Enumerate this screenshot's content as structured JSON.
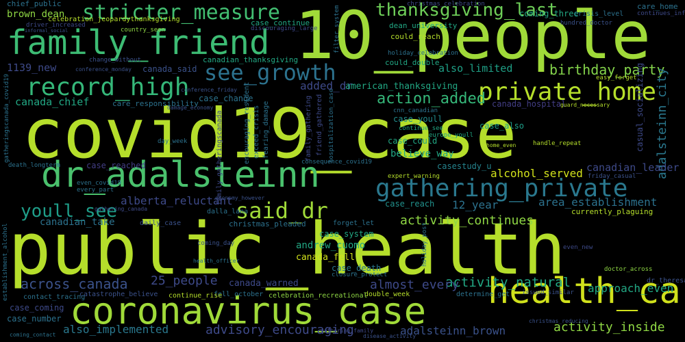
{
  "words": [
    {
      "text": "covid19_case",
      "color": "#b5de2b"
    },
    {
      "text": "public_health",
      "color": "#b5de2b"
    },
    {
      "text": "10_people",
      "color": "#a0da39"
    },
    {
      "text": "coronavirus_case",
      "color": "#a0da39"
    },
    {
      "text": "dr_adalsteinn",
      "color": "#4ac16d"
    },
    {
      "text": "family_friend",
      "color": "#3dbc74"
    },
    {
      "text": "health_care",
      "color": "#d0e11c"
    },
    {
      "text": "gathering_private",
      "color": "#2a788e"
    },
    {
      "text": "record_high",
      "color": "#35b779"
    },
    {
      "text": "private_home",
      "color": "#b5de2b"
    },
    {
      "text": "stricter_measure",
      "color": "#42be71"
    },
    {
      "text": "see_growth",
      "color": "#2c728e"
    },
    {
      "text": "said_dr",
      "color": "#a0da39"
    },
    {
      "text": "youll_see",
      "color": "#1f9e89"
    },
    {
      "text": "thanksgiving_last",
      "color": "#6ece58"
    },
    {
      "text": "action_added",
      "color": "#35b779"
    },
    {
      "text": "birthday_party",
      "color": "#84d44b"
    },
    {
      "text": "across_canada",
      "color": "#3b528b"
    },
    {
      "text": "coming_three",
      "color": "#22a884"
    },
    {
      "text": "canada_chief",
      "color": "#22a884"
    },
    {
      "text": "approach_even",
      "color": "#22a884"
    },
    {
      "text": "activity_natural",
      "color": "#22a884"
    },
    {
      "text": "activity_continues",
      "color": "#8fd744"
    },
    {
      "text": "activity_inside",
      "color": "#8fd744"
    },
    {
      "text": "advisory_encouraging",
      "color": "#3e4a89"
    },
    {
      "text": "alberta_reluctant",
      "color": "#3e4a89"
    },
    {
      "text": "almost_every",
      "color": "#3e4a89"
    },
    {
      "text": "also_limited",
      "color": "#1fa187"
    },
    {
      "text": "also_implemented",
      "color": "#2a788e"
    },
    {
      "text": "alcohol_served",
      "color": "#d2e21b"
    },
    {
      "text": "adalsteinn_city",
      "color": "#2a788e"
    },
    {
      "text": "adalsteinn_brown",
      "color": "#3b528b"
    },
    {
      "text": "added_dr",
      "color": "#3e4a89"
    },
    {
      "text": "area_establishment",
      "color": "#2c728e"
    },
    {
      "text": "canadian_leader",
      "color": "#3e4a89"
    },
    {
      "text": "canadian_take",
      "color": "#2c728e"
    },
    {
      "text": "american_thanksgiving",
      "color": "#22a884"
    },
    {
      "text": "case_reached",
      "color": "#433e85"
    },
    {
      "text": "case_youll",
      "color": "#228c8d"
    },
    {
      "text": "case_could",
      "color": "#22a884"
    },
    {
      "text": "case_also",
      "color": "#1f9e89"
    },
    {
      "text": "case_reach",
      "color": "#21918c"
    },
    {
      "text": "casestudy_u",
      "color": "#25848e"
    },
    {
      "text": "case_system",
      "color": "#22a884"
    },
    {
      "text": "case_death",
      "color": "#2a788e"
    },
    {
      "text": "case_coming",
      "color": "#3e4a89"
    },
    {
      "text": "case_change",
      "color": "#2c728e"
    },
    {
      "text": "case_number",
      "color": "#2c728e"
    },
    {
      "text": "casual_socializing",
      "color": "#3e4a89"
    },
    {
      "text": "believe_way",
      "color": "#22a884"
    },
    {
      "text": "12_year",
      "color": "#2c728e"
    },
    {
      "text": "25_people",
      "color": "#3e4a89"
    },
    {
      "text": "1139_new",
      "color": "#3e4a89"
    },
    {
      "text": "andrew_cuomo",
      "color": "#22a884"
    },
    {
      "text": "canada_fell",
      "color": "#d2e21b"
    },
    {
      "text": "canada_warned",
      "color": "#3e4a89"
    },
    {
      "text": "canada_hospital",
      "color": "#433e85"
    },
    {
      "text": "canada_said",
      "color": "#3b528b"
    },
    {
      "text": "brown_dean",
      "color": "#8fd744"
    },
    {
      "text": "chief_public",
      "color": "#2c728e"
    },
    {
      "text": "dean_university",
      "color": "#22a884"
    },
    {
      "text": "could_reach",
      "color": "#b5de2b"
    },
    {
      "text": "could_double",
      "color": "#22a884"
    },
    {
      "text": "case_continue",
      "color": "#22a884"
    },
    {
      "text": "canadian_thanksgiving",
      "color": "#22a884"
    },
    {
      "text": "care_responsibility",
      "color": "#2c728e"
    },
    {
      "text": "home_even",
      "color": "#b5de2b"
    },
    {
      "text": "hundred_doctor",
      "color": "#3b528b"
    },
    {
      "text": "continues_informal",
      "color": "#3e4a89"
    },
    {
      "text": "crisis_level",
      "color": "#2c728e"
    },
    {
      "text": "care_home",
      "color": "#2c728e"
    },
    {
      "text": "forget_let",
      "color": "#2c728e"
    },
    {
      "text": "christmas_pleaded",
      "color": "#2c728e"
    },
    {
      "text": "daily_case",
      "color": "#3b528b"
    },
    {
      "text": "coming_day",
      "color": "#3b528b"
    },
    {
      "text": "dalla_lana",
      "color": "#2c728e"
    },
    {
      "text": "fell_october",
      "color": "#2c728e"
    },
    {
      "text": "continue_rise",
      "color": "#b5de2b"
    },
    {
      "text": "double_week",
      "color": "#b5de2b"
    },
    {
      "text": "contact_tracing",
      "color": "#2c728e"
    },
    {
      "text": "catastrophe_believe",
      "color": "#3b528b"
    },
    {
      "text": "determine_get",
      "color": "#2c728e"
    },
    {
      "text": "currently_plaguing",
      "color": "#b5de2b"
    },
    {
      "text": "celebration_recreational",
      "color": "#8fd744"
    },
    {
      "text": "issued_similar",
      "color": "#3b528b"
    },
    {
      "text": "christmas_celebration",
      "color": "#3e4a89"
    },
    {
      "text": "celebration_jeopardythanksgiving",
      "color": "#b5de2b"
    },
    {
      "text": "driver_increased",
      "color": "#3e4a89"
    },
    {
      "text": "informal_social",
      "color": "#3b528b"
    },
    {
      "text": "country_seen",
      "color": "#8fd744"
    },
    {
      "text": "change_without",
      "color": "#3b528b"
    },
    {
      "text": "conference_monday",
      "color": "#3b528b"
    },
    {
      "text": "conference_friday",
      "color": "#3b528b"
    },
    {
      "text": "damage_economy",
      "color": "#3b528b"
    },
    {
      "text": "discouraging_large",
      "color": "#3e4a89"
    },
    {
      "text": "holiday_celebration",
      "color": "#2c728e"
    },
    {
      "text": "cnn_canadian",
      "color": "#2c728e"
    },
    {
      "text": "continue_see",
      "color": "#22a884"
    },
    {
      "text": "europe_youll",
      "color": "#22a884"
    },
    {
      "text": "easy_forget",
      "color": "#b5de2b"
    },
    {
      "text": "guard_necessary",
      "color": "#b5de2b"
    },
    {
      "text": "handle_repeat",
      "color": "#b5de2b"
    },
    {
      "text": "day_week",
      "color": "#2c728e"
    },
    {
      "text": "death_longterm",
      "color": "#2c728e"
    },
    {
      "text": "even_covid19",
      "color": "#2c728e"
    },
    {
      "text": "every_part",
      "color": "#2c728e"
    },
    {
      "text": "expert_warning",
      "color": "#b5de2b"
    },
    {
      "text": "consequence_covid19",
      "color": "#2c728e"
    },
    {
      "text": "friday_casual",
      "color": "#3b528b"
    },
    {
      "text": "doctor_across",
      "color": "#8fd744"
    },
    {
      "text": "dr_theresa",
      "color": "#3b528b"
    },
    {
      "text": "closure_protect",
      "color": "#2c728e"
    },
    {
      "text": "even_new",
      "color": "#3e4a89"
    },
    {
      "text": "coming_contact",
      "color": "#2c728e"
    },
    {
      "text": "christmas_reducing",
      "color": "#3b528b"
    },
    {
      "text": "disease_activity",
      "color": "#3b528b"
    },
    {
      "text": "health_officer",
      "color": "#2c728e"
    },
    {
      "text": "gathering_family",
      "color": "#3e4a89"
    },
    {
      "text": "gathering_canada",
      "color": "#3e4a89"
    },
    {
      "text": "economy_however",
      "color": "#3b528b"
    },
    {
      "text": "establishment_alcohol",
      "color": "#2c728e"
    },
    {
      "text": "encouraging_resident",
      "color": "#2c728e"
    },
    {
      "text": "exceed_crisis",
      "color": "#2c728e"
    },
    {
      "text": "fearing_damage",
      "color": "#2c728e"
    },
    {
      "text": "family_gathering",
      "color": "#3e4a89"
    },
    {
      "text": "friend_gathered",
      "color": "#3e4a89"
    },
    {
      "text": "family_gatheringscanada",
      "color": "#3e4a89"
    },
    {
      "text": "holiday_post",
      "color": "#2c728e"
    },
    {
      "text": "hospitalization_case",
      "color": "#2c728e"
    },
    {
      "text": "filter_system",
      "color": "#2c728e"
    },
    {
      "text": "gatheringscanada_covid19",
      "color": "#2c728e"
    }
  ]
}
